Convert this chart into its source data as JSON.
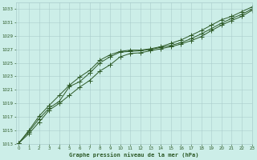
{
  "title": "Graphe pression niveau de la mer (hPa)",
  "bg_color": "#cceee8",
  "grid_color": "#aacccc",
  "line_color": "#2d5a27",
  "xlim": [
    -0.3,
    23
  ],
  "ylim": [
    1013,
    1034
  ],
  "yticks": [
    1013,
    1015,
    1017,
    1019,
    1021,
    1023,
    1025,
    1027,
    1029,
    1031,
    1033
  ],
  "xticks": [
    0,
    1,
    2,
    3,
    4,
    5,
    6,
    7,
    8,
    9,
    10,
    11,
    12,
    13,
    14,
    15,
    16,
    17,
    18,
    19,
    20,
    21,
    22,
    23
  ],
  "line1": [
    1013.1,
    1015.0,
    1017.1,
    1018.7,
    1020.2,
    1021.7,
    1022.9,
    1023.9,
    1025.4,
    1026.2,
    1026.7,
    1026.9,
    1026.9,
    1027.1,
    1027.4,
    1027.9,
    1028.4,
    1029.1,
    1029.8,
    1030.6,
    1031.4,
    1031.9,
    1032.6,
    1033.3
  ],
  "line2": [
    1013.1,
    1014.8,
    1016.7,
    1018.3,
    1019.3,
    1021.5,
    1022.2,
    1023.5,
    1025.0,
    1025.9,
    1026.6,
    1026.7,
    1026.8,
    1027.0,
    1027.3,
    1027.6,
    1028.0,
    1028.6,
    1029.3,
    1030.1,
    1030.9,
    1031.6,
    1032.2,
    1033.0
  ],
  "line3": [
    1013.1,
    1014.5,
    1016.2,
    1018.0,
    1019.0,
    1020.2,
    1021.4,
    1022.4,
    1023.8,
    1024.7,
    1025.9,
    1026.4,
    1026.5,
    1026.8,
    1027.1,
    1027.4,
    1027.8,
    1028.3,
    1028.9,
    1029.8,
    1030.6,
    1031.3,
    1031.9,
    1032.8
  ],
  "markersize": 2.5,
  "linewidth": 0.7
}
